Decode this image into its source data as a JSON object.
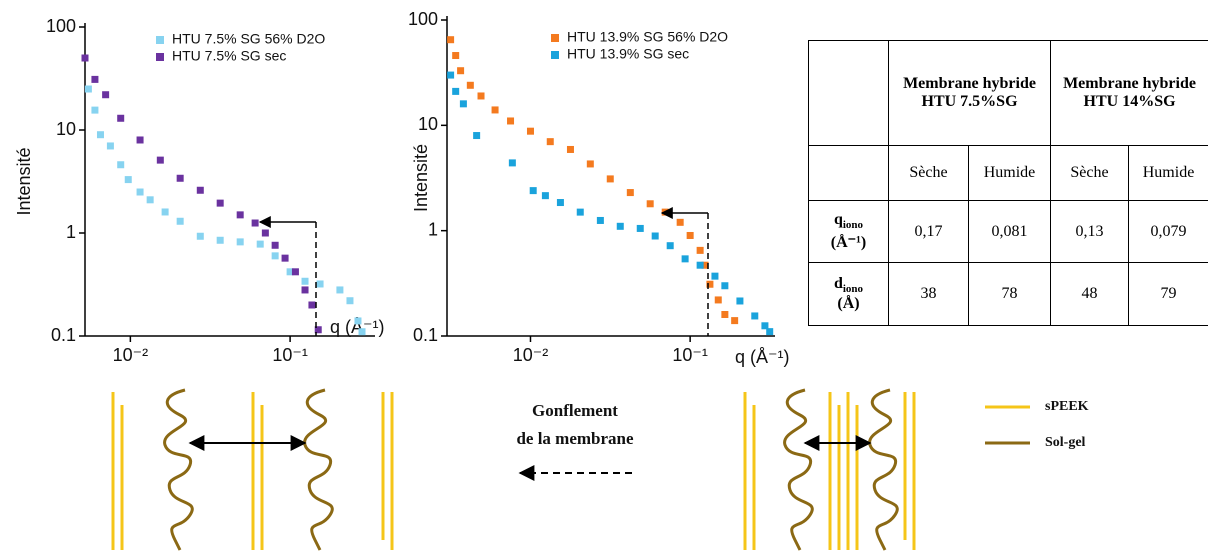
{
  "chart_data": [
    {
      "type": "scatter",
      "xscale": "log",
      "yscale": "log",
      "y_label": "Intensité",
      "x_label": "q (Å⁻¹)",
      "xlim": [
        0.0052,
        0.34
      ],
      "ylim": [
        0.1,
        100
      ],
      "xticks": [
        {
          "value": 0.01,
          "label": "10⁻²"
        },
        {
          "value": 0.1,
          "label": "10⁻¹"
        }
      ],
      "yticks": [
        0.1,
        1,
        10,
        100
      ],
      "series": [
        {
          "name": "HTU 7.5% SG 56% D2O",
          "color": "#87d3f0",
          "x": [
            0.00546,
            0.006,
            0.0065,
            0.0075,
            0.0087,
            0.0097,
            0.0115,
            0.0133,
            0.0165,
            0.0205,
            0.0274,
            0.0365,
            0.0487,
            0.065,
            0.0806,
            0.1,
            0.124,
            0.154,
            0.205,
            0.237,
            0.266,
            0.282
          ],
          "values": [
            25,
            15.6,
            9,
            7,
            4.6,
            3.3,
            2.5,
            2.1,
            1.6,
            1.3,
            0.93,
            0.85,
            0.82,
            0.78,
            0.6,
            0.42,
            0.34,
            0.32,
            0.28,
            0.22,
            0.14,
            0.11
          ]
        },
        {
          "name": "HTU 7.5% SG sec",
          "color": "#6a329f",
          "x": [
            0.0052,
            0.006,
            0.007,
            0.0087,
            0.0115,
            0.0154,
            0.0205,
            0.0274,
            0.0365,
            0.0487,
            0.0604,
            0.07,
            0.0806,
            0.093,
            0.108,
            0.124,
            0.137,
            0.15
          ],
          "values": [
            50,
            31,
            22,
            13,
            8,
            5.1,
            3.4,
            2.6,
            1.95,
            1.5,
            1.25,
            1.0,
            0.76,
            0.57,
            0.42,
            0.28,
            0.2,
            0.115
          ]
        }
      ]
    },
    {
      "type": "scatter",
      "xscale": "log",
      "yscale": "log",
      "y_label": "Intensité",
      "x_label": "q (Å⁻¹)",
      "xlim": [
        0.003,
        0.34
      ],
      "ylim": [
        0.1,
        100
      ],
      "xticks": [
        {
          "value": 0.01,
          "label": "10⁻²"
        },
        {
          "value": 0.1,
          "label": "10⁻¹"
        }
      ],
      "yticks": [
        0.1,
        1,
        10,
        100
      ],
      "series": [
        {
          "name": "HTU 13.9% SG 56% D2O",
          "color": "#f47a1f",
          "x": [
            0.00316,
            0.0034,
            0.00365,
            0.0042,
            0.0049,
            0.006,
            0.0075,
            0.01,
            0.0133,
            0.0178,
            0.0237,
            0.0316,
            0.0422,
            0.0562,
            0.0698,
            0.0866,
            0.1,
            0.1155,
            0.124,
            0.133,
            0.15,
            0.165,
            0.19
          ],
          "values": [
            65,
            46,
            33,
            24,
            19,
            14,
            11,
            8.8,
            7,
            5.9,
            4.3,
            3.1,
            2.3,
            1.8,
            1.5,
            1.2,
            0.9,
            0.65,
            0.47,
            0.31,
            0.22,
            0.16,
            0.14
          ]
        },
        {
          "name": "HTU 13.9% SG sec",
          "color": "#1aa3dc",
          "x": [
            0.00316,
            0.0034,
            0.0038,
            0.0046,
            0.0077,
            0.0104,
            0.0124,
            0.0154,
            0.0205,
            0.0274,
            0.0365,
            0.0487,
            0.0604,
            0.075,
            0.093,
            0.1155,
            0.143,
            0.165,
            0.205,
            0.254,
            0.294,
            0.315
          ],
          "values": [
            30,
            21,
            16,
            8,
            4.4,
            2.4,
            2.15,
            1.85,
            1.5,
            1.25,
            1.1,
            1.05,
            0.89,
            0.72,
            0.54,
            0.47,
            0.37,
            0.3,
            0.215,
            0.155,
            0.125,
            0.11
          ]
        }
      ]
    }
  ],
  "table": {
    "groups": [
      "Membrane hybride HTU 7.5%SG",
      "Membrane hybride HTU 14%SG"
    ],
    "columns": [
      "Sèche",
      "Humide",
      "Sèche",
      "Humide"
    ],
    "rows": [
      {
        "symbol": "q",
        "subscript": "iono",
        "unit": "(Å⁻¹)",
        "cells": [
          "0,17",
          "0,081",
          "0,13",
          "0,079"
        ]
      },
      {
        "symbol": "d",
        "subscript": "iono",
        "unit": "(Å)",
        "cells": [
          "38",
          "78",
          "48",
          "79"
        ]
      }
    ]
  },
  "diagram": {
    "caption": [
      "Gonflement",
      "de la membrane"
    ],
    "legend": [
      {
        "label": "sPEEK",
        "color": "#f5c518"
      },
      {
        "label": "Sol-gel",
        "color": "#8b6914"
      }
    ]
  }
}
